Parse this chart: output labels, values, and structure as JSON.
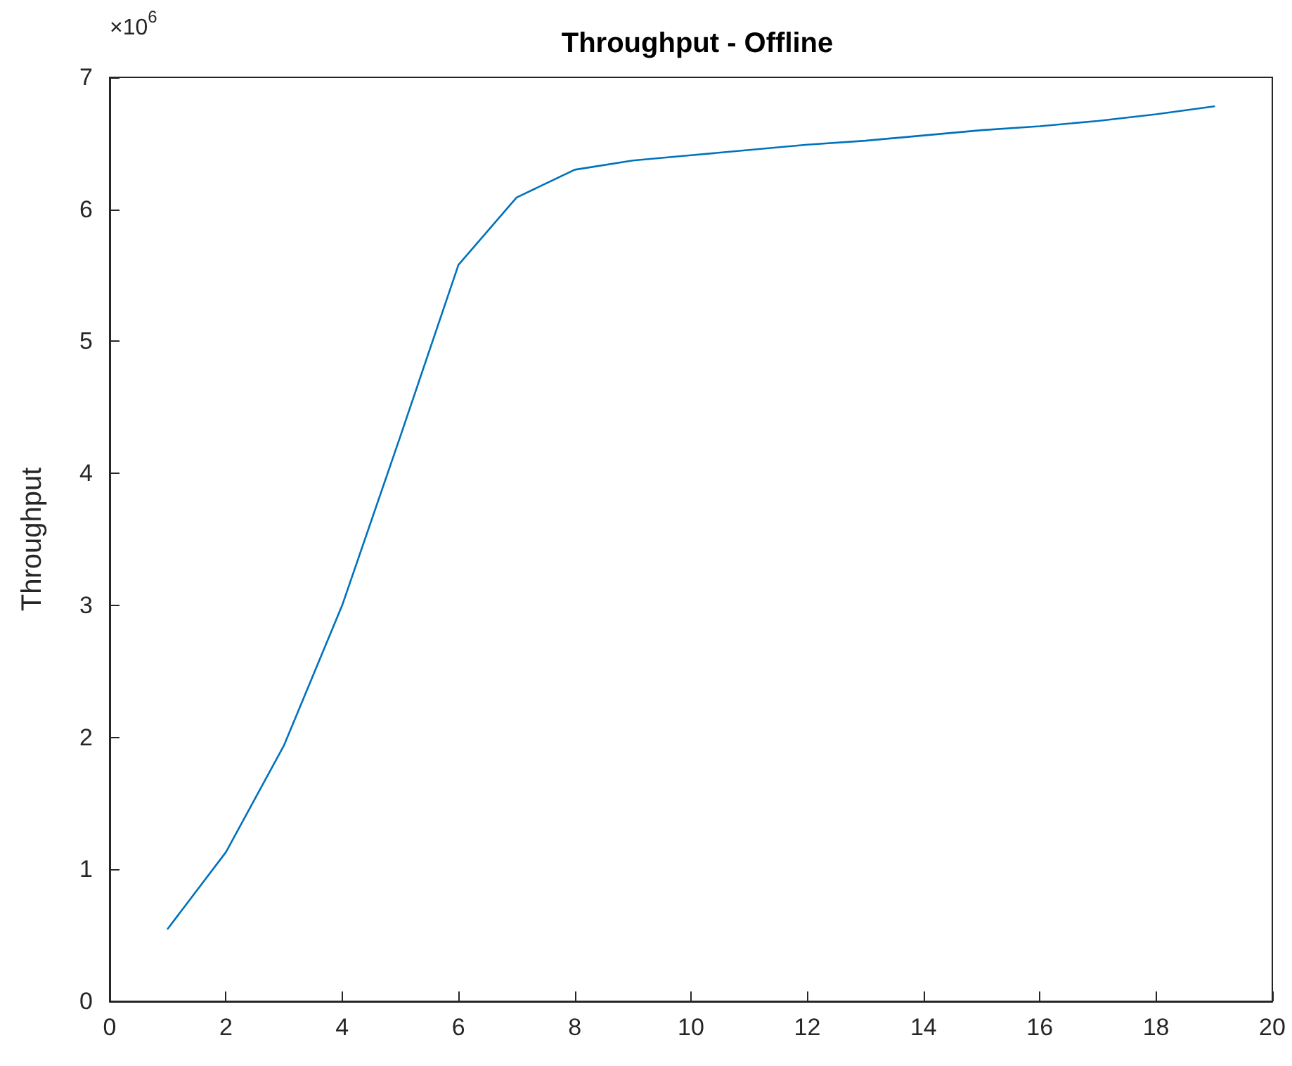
{
  "chart_data": {
    "type": "line",
    "title": "Throughput - Offline",
    "ylabel": "Throughput",
    "annotations": [
      "×10$^{6}$"
    ],
    "x": [
      1,
      2,
      3,
      4,
      5,
      6,
      7,
      8,
      9,
      10,
      11,
      12,
      13,
      14,
      15,
      16,
      17,
      18,
      19
    ],
    "series": [
      {
        "color": "#0072bd",
        "values": [
          0.55,
          1.13,
          1.94,
          3.0,
          4.28,
          5.58,
          6.09,
          6.3,
          6.37,
          6.41,
          6.45,
          6.49,
          6.52,
          6.56,
          6.6,
          6.63,
          6.67,
          6.72,
          6.78
        ]
      }
    ],
    "xlim": [
      0,
      20
    ],
    "xticks": [
      0,
      2,
      4,
      6,
      8,
      10,
      12,
      14,
      16,
      18,
      20
    ],
    "ylim": [
      0,
      7
    ],
    "yticks": [
      0,
      1,
      2,
      3,
      4,
      5,
      6,
      7
    ],
    "grid": false,
    "marker": "none",
    "line_style": "solid"
  }
}
